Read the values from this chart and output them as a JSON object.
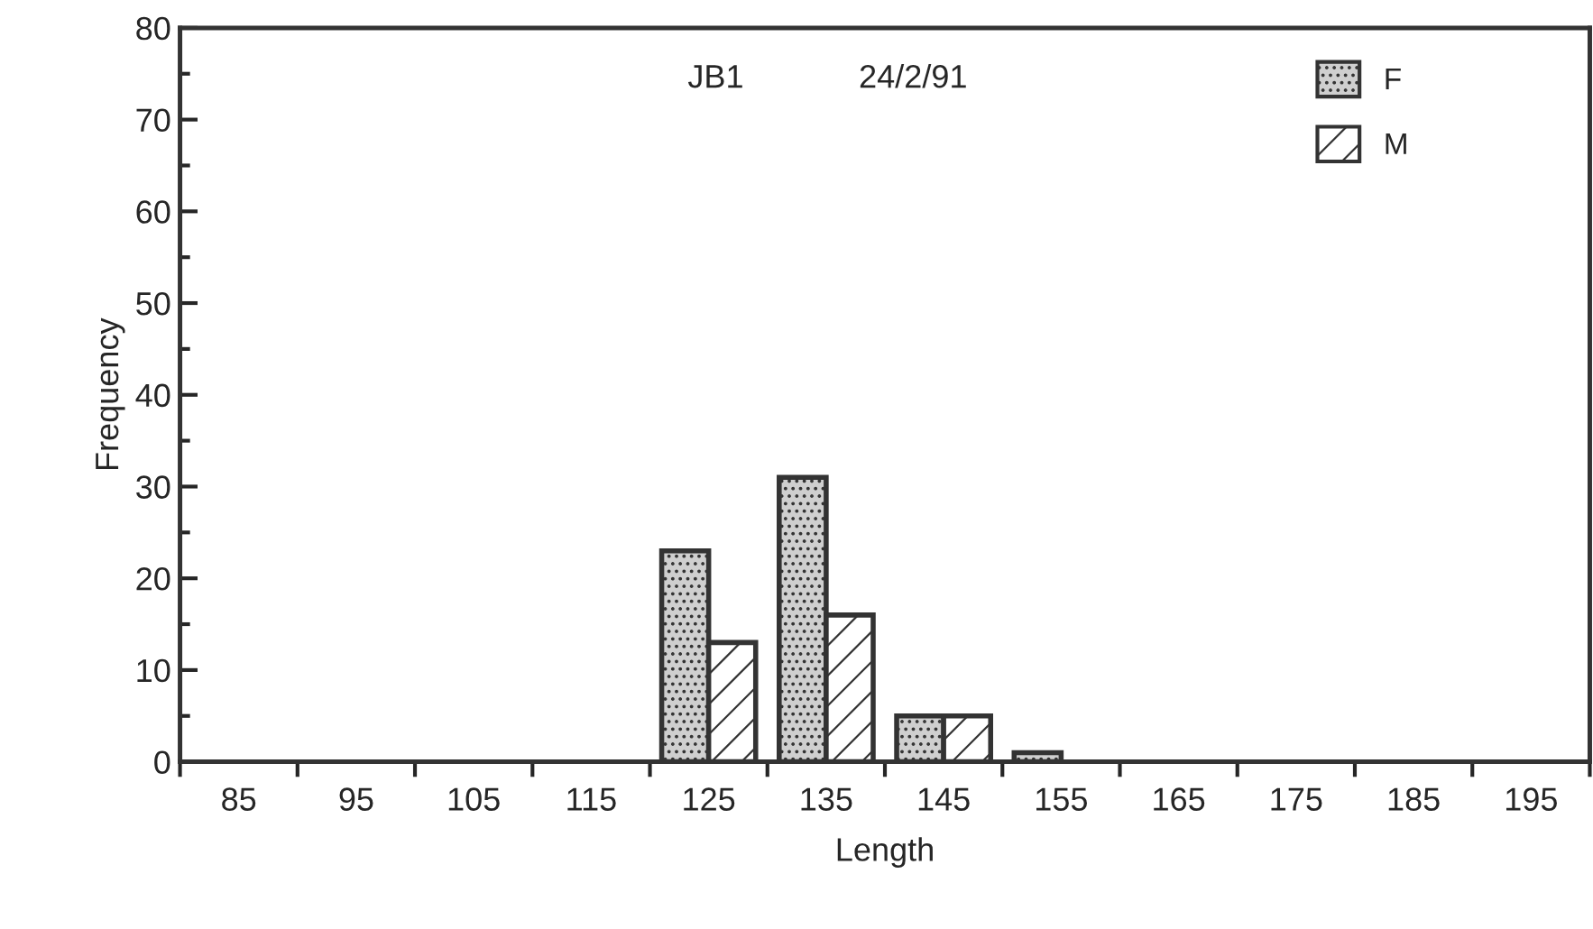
{
  "chart_data": {
    "type": "bar",
    "xlabel": "Length",
    "ylabel": "Frequency",
    "categories": [
      "85",
      "95",
      "105",
      "115",
      "125",
      "135",
      "145",
      "155",
      "165",
      "175",
      "185",
      "195"
    ],
    "series": [
      {
        "name": "F",
        "color": "#cfcfcf",
        "values": [
          0,
          0,
          0,
          0,
          23,
          31,
          5,
          1,
          0,
          0,
          0,
          0
        ]
      },
      {
        "name": "M",
        "color": "#ffffff",
        "values": [
          0,
          0,
          0,
          0,
          13,
          16,
          5,
          0,
          0,
          0,
          0,
          0
        ]
      }
    ],
    "ylim": [
      0,
      80
    ],
    "yticks": [
      0,
      10,
      20,
      30,
      40,
      50,
      60,
      70,
      80
    ],
    "annotations": [
      "JB1",
      "24/2/91"
    ],
    "legend": "top right",
    "grid": false
  }
}
